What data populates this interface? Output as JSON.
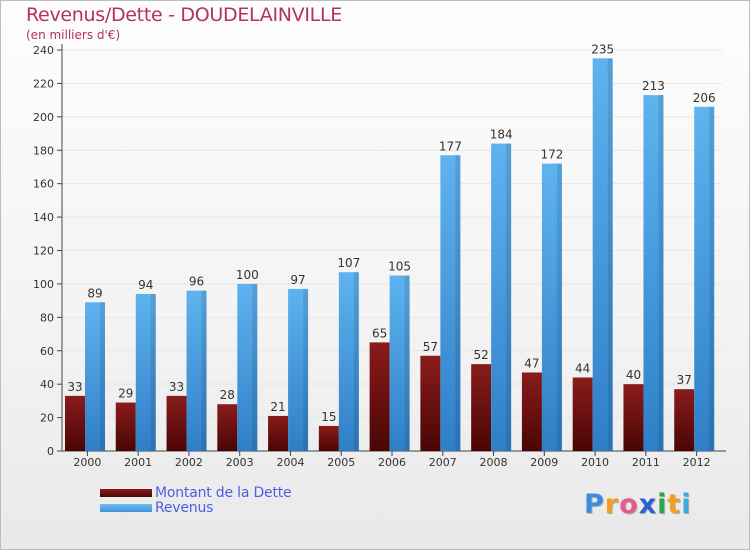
{
  "header": {
    "title": "Revenus/Dette - DOUDELAINVILLE",
    "subtitle": "(en milliers d'€)"
  },
  "legend": {
    "items": [
      {
        "label": "Montant de la Dette",
        "color": "#7a1010"
      },
      {
        "label": "Revenus",
        "color": "#4ea7ea"
      }
    ]
  },
  "logo": {
    "text": "Proxiti",
    "letters": [
      {
        "ch": "P",
        "color": "#3a8de0"
      },
      {
        "ch": "r",
        "color": "#f0a020"
      },
      {
        "ch": "o",
        "color": "#e85a8c"
      },
      {
        "ch": "x",
        "color": "#2e5fd0"
      },
      {
        "ch": "i",
        "color": "#2aa84a"
      },
      {
        "ch": "t",
        "color": "#f0a020"
      },
      {
        "ch": "i",
        "color": "#3aaae0"
      }
    ]
  },
  "chart_data": {
    "type": "bar",
    "categories": [
      "2000",
      "2001",
      "2002",
      "2003",
      "2004",
      "2005",
      "2006",
      "2007",
      "2008",
      "2009",
      "2010",
      "2011",
      "2012"
    ],
    "series": [
      {
        "name": "Montant de la Dette",
        "color": "#7a1010",
        "values": [
          33,
          29,
          33,
          28,
          21,
          15,
          65,
          57,
          52,
          47,
          44,
          40,
          37
        ]
      },
      {
        "name": "Revenus",
        "color": "#4ea7ea",
        "values": [
          89,
          94,
          96,
          100,
          97,
          107,
          105,
          177,
          184,
          172,
          235,
          213,
          206
        ]
      }
    ],
    "ylim": [
      0,
      240
    ],
    "yticks": [
      0,
      20,
      40,
      60,
      80,
      100,
      120,
      140,
      160,
      180,
      200,
      220,
      240
    ],
    "grid": true,
    "legend_position": "bottom-left"
  }
}
